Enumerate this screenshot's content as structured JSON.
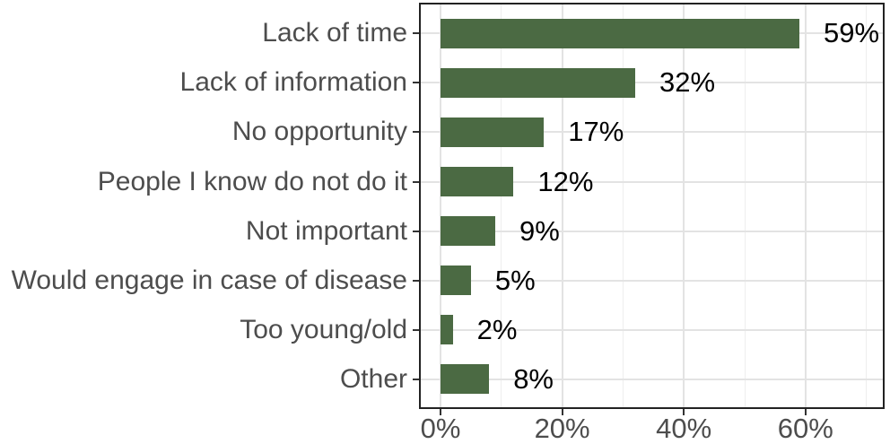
{
  "chart_data": {
    "type": "bar",
    "orientation": "horizontal",
    "title": "",
    "xlabel": "",
    "ylabel": "",
    "categories": [
      "Lack of time",
      "Lack of information",
      "No opportunity",
      "People I know do not do it",
      "Not important",
      "Would engage in case of disease",
      "Too young/old",
      "Other"
    ],
    "values": [
      59,
      32,
      17,
      12,
      9,
      5,
      2,
      8
    ],
    "value_labels": [
      "59%",
      "32%",
      "17%",
      "12%",
      "9%",
      "5%",
      "2%",
      "8%"
    ],
    "x_major_ticks": [
      0,
      20,
      40,
      60
    ],
    "x_tick_labels": [
      "0%",
      "20%",
      "40%",
      "60%"
    ],
    "x_minor_ticks": [
      10,
      30,
      50,
      70
    ],
    "xlim": [
      -3.4,
      73
    ],
    "grid": "on",
    "legend": "none",
    "colors": {
      "bar": "#4b6a43",
      "value_label": "#000000",
      "axis_text": "#4d4d4d",
      "grid_major": "#e3e3e3",
      "grid_minor": "#eeeeee",
      "panel_border": "#222222",
      "tick_mark": "#333333",
      "background": "#ffffff"
    }
  }
}
